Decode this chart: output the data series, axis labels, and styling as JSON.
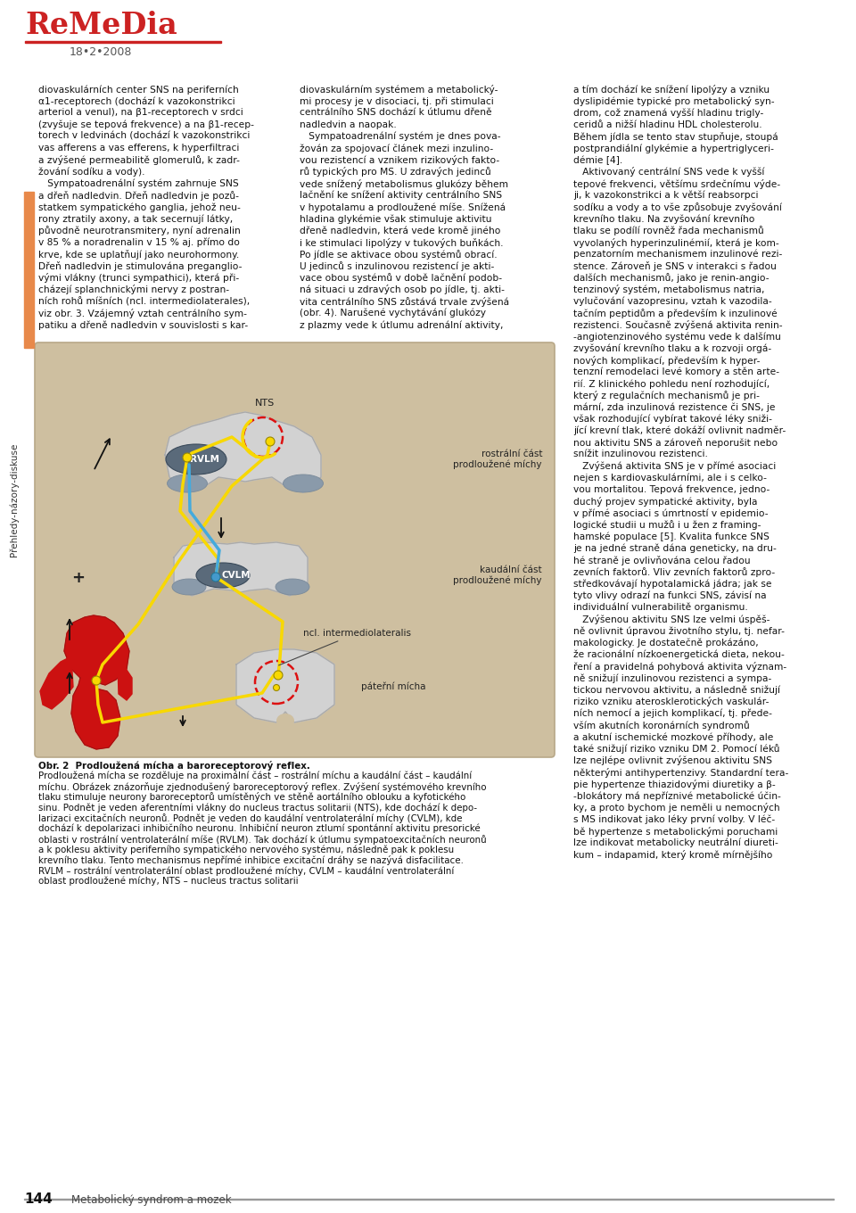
{
  "page_width": 9.6,
  "page_height": 13.6,
  "dpi": 100,
  "bg_color": "#ffffff",
  "header_color": "#cc2222",
  "header_text": "ReMeDia",
  "header_subtext": "18•2•2008",
  "page_number": "144",
  "page_footer": "Metabolický syndrom a mozek",
  "left_sidebar_text": "Přehledy-názory-diskuse",
  "left_orange_bar_color": "#e8894a",
  "col1_text_lines": [
    "diovaskulárních center SNS na periferních",
    "α1-receptorech (dochází k vazokonstrikci",
    "arteriol a venul), na β1-receptorech v srdci",
    "(zvyšuje se tepová frekvence) a na β1-recep-",
    "torech v ledvinách (dochází k vazokonstrikci",
    "vas afferens a vas efferens, k hyperfiltraci",
    "a zvýšené permeabilitě glomerulů, k zadr-",
    "žování sodíku a vody).",
    "   Sympatoadrenální systém zahrnuje SNS",
    "a dřeň nadledvin. Dřeň nadledvin je pozů-",
    "statkem sympatického ganglia, jehož neu-",
    "rony ztratily axony, a tak secernují látky,",
    "původně neurotransmitery, nyní adrenalin",
    "v 85 % a noradrenalin v 15 % aj. přímo do",
    "krve, kde se uplatňují jako neurohormony.",
    "Dřeň nadledvin je stimulována preganglio-",
    "vými vlákny (trunci sympathici), která při-",
    "cházejí splanchnickými nervy z postran-",
    "ních rohů míšních (ncl. intermediolaterales),",
    "viz obr. 3. Vzájemný vztah centrálního sym-",
    "patiku a dřeně nadledvin v souvislosti s kar-"
  ],
  "col2_text_lines": [
    "diovaskulárním systémem a metabolický-",
    "mi procesy je v disociaci, tj. při stimulaci",
    "centrálního SNS dochází k útlumu dřeně",
    "nadledvin a naopak.",
    "   Sympatoadrenální systém je dnes pova-",
    "žován za spojovací článek mezi inzulino-",
    "vou rezistencí a vznikem rizikových fakto-",
    "rů typických pro MS. U zdravých jedinců",
    "vede snížený metabolismus glukózy během",
    "lačnění ke snížení aktivity centrálního SNS",
    "v hypotalamu a prodloužené míše. Snížená",
    "hladina glykémie však stimuluje aktivitu",
    "dřeně nadledvin, která vede kromě jiného",
    "i ke stimulaci lipolýzy v tukových buňkách.",
    "Po jídle se aktivace obou systémů obrací.",
    "U jedinců s inzulinovou rezistencí je akti-",
    "vace obou systémů v době lačnění podob-",
    "ná situaci u zdravých osob po jídle, tj. akti-",
    "vita centrálního SNS zůstává trvale zvýšená",
    "(obr. 4). Narušené vychytávání glukózy",
    "z plazmy vede k útlumu adrenální aktivity,"
  ],
  "col3_text_lines": [
    "a tím dochází ke snížení lipolýzy a vzniku",
    "dyslipidémie typické pro metabolický syn-",
    "drom, což znamená vyšší hladinu trigly-",
    "ceridů a nižší hladinu HDL cholesterolu.",
    "Během jídla se tento stav stupňuje, stoupá",
    "postprandiální glykémie a hypertriglyceri-",
    "démie [4].",
    "   Aktivovaný centrální SNS vede k vyšší",
    "tepové frekvenci, většímu srdečnímu výde-",
    "ji, k vazokonstrikci a k větší reabsorpci",
    "sodíku a vody a to vše způsobuje zvyšování",
    "krevního tlaku. Na zvyšování krevního",
    "tlaku se podílí rovněž řada mechanismů",
    "vyvolaných hyperinzulinémií, která je kom-",
    "penzatorním mechanismem inzulinové rezi-",
    "stence. Zároveň je SNS v interakci s řadou",
    "dalších mechanismů, jako je renin-angio-",
    "tenzinový systém, metabolismus natria,",
    "vylučování vazopresinu, vztah k vazodila-",
    "tačním peptidům a především k inzulinové",
    "rezistenci. Současně zvýšená aktivita renin-",
    "-angiotenzinového systému vede k dalšímu",
    "zvyšování krevního tlaku a k rozvoji orgá-",
    "nových komplikací, především k hyper-",
    "tenzní remodelaci levé komory a stěn arte-",
    "rií. Z klinického pohledu není rozhodující,",
    "který z regulačních mechanismů je pri-",
    "mární, zda inzulinová rezistence či SNS, je",
    "však rozhodující vybírat takové léky sniži-",
    "jící krevní tlak, které dokáží ovlivnit nadměr-",
    "nou aktivitu SNS a zároveň neporušit nebo",
    "snížit inzulinovou rezistenci.",
    "   Zvýšená aktivita SNS je v přímé asociaci",
    "nejen s kardiovaskulárními, ale i s celko-",
    "vou mortalitou. Tepová frekvence, jedno-",
    "duchý projev sympatické aktivity, byla",
    "v přímé asociaci s úmrtností v epidemio-",
    "logické studii u mužů i u žen z framing-",
    "hamské populace [5]. Kvalita funkce SNS",
    "je na jedné straně dána geneticky, na dru-",
    "hé straně je ovlivňována celou řadou",
    "zevních faktorů. Vliv zevních faktorů zpro-",
    "středkovávají hypotalamická jádra; jak se",
    "tyto vlivy odrazí na funkci SNS, závisí na",
    "individuální vulnerabilitě organismu.",
    "   Zvýšenou aktivitu SNS lze velmi úspěš-",
    "ně ovlivnit úpravou životního stylu, tj. nefar-",
    "makologicky. Je dostatečně prokázáno,",
    "že racionální nízkoenergetická dieta, nekou-",
    "ření a pravidelná pohybová aktivita význam-",
    "ně snižují inzulinovou rezistenci a sympa-",
    "tickou nervovou aktivitu, a následně snižují",
    "riziko vzniku aterosklerotických vaskulár-",
    "ních nemocí a jejich komplikací, tj. přede-",
    "vším akutních koronárních syndromů",
    "a akutní ischemické mozkové příhody, ale",
    "také snižují riziko vzniku DM 2. Pomocí léků",
    "lze nejlépe ovlivnit zvýšenou aktivitu SNS",
    "některými antihypertenzivy. Standardní tera-",
    "pie hypertenze thiazidovými diuretiky a β-",
    "-blokátory má nepříznivé metabolické účin-",
    "ky, a proto bychom je neměli u nemocných",
    "s MS indikovat jako léky první volby. V léč-",
    "bě hypertenze s metabolickými poruchami",
    "lze indikovat metabolicky neutrální diureti-",
    "kum – indapamid, který kromě mírnějšího"
  ],
  "caption_text": [
    "Obr. 2  Prodloužená mícha a baroreceptorový reflex.",
    "Prodloužená mícha se rozděluje na proximální část – rostrální míchu a kaudální část – kaudální",
    "míchu. Obrázek znázorňuje zjednodušený baroreceptorový reflex. Zvýšení systémového krevního",
    "tlaku stimuluje neurony baroreceptorů umístěných ve stěně aortálního oblouku a kyfotického",
    "sinu. Podnět je veden aferentními vlákny do nucleus tractus solitarii (NTS), kde dochází k depo-",
    "larizaci excitačních neuronů. Podnět je veden do kaudální ventrolaterální míchy (CVLM), kde",
    "dochází k depolarizaci inhibičního neuronu. Inhibiční neuron ztlumí spontánní aktivitu presorické",
    "oblasti v rostrální ventrolaterální míše (RVLM). Tak dochází k útlumu sympatoexcitačních neuronů",
    "a k poklesu aktivity periferního sympatického nervového systému, následně pak k poklesu",
    "krevního tlaku. Tento mechanismus nepřímé inhibice excitační dráhy se nazývá disfacilitace.",
    "RVLM – rostrální ventrolaterální oblast prodloužené míchy, CVLM – kaudální ventrolaterální",
    "oblast prodloužené míchy, NTS – nucleus tractus solitarii"
  ],
  "diagram_bg": "#cebfa0",
  "diagram_border": "#b8a888"
}
